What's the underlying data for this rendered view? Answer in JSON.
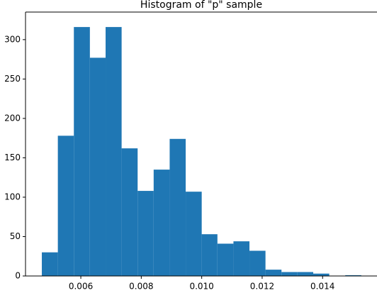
{
  "chart_data": {
    "type": "histogram",
    "title": "Histogram of \"p\" sample",
    "bins": [
      0.00471,
      0.00524,
      0.00577,
      0.0063,
      0.00682,
      0.00735,
      0.00788,
      0.00841,
      0.00894,
      0.00947,
      0.01,
      0.01052,
      0.01105,
      0.01158,
      0.01211,
      0.01264,
      0.01317,
      0.01369,
      0.01422,
      0.01475,
      0.01528
    ],
    "counts": [
      30,
      178,
      316,
      277,
      316,
      162,
      108,
      135,
      174,
      107,
      53,
      41,
      44,
      32,
      8,
      5,
      5,
      3,
      0,
      1
    ],
    "color": "#1f77b4",
    "xlim": [
      0.00417,
      0.0158
    ],
    "ylim": [
      0,
      335
    ],
    "xticks": [
      {
        "value": 0.006,
        "label": "0.006"
      },
      {
        "value": 0.008,
        "label": "0.008"
      },
      {
        "value": 0.01,
        "label": "0.010"
      },
      {
        "value": 0.012,
        "label": "0.012"
      },
      {
        "value": 0.014,
        "label": "0.014"
      }
    ],
    "yticks": [
      0,
      50,
      100,
      150,
      200,
      250,
      300
    ],
    "grid": false
  }
}
